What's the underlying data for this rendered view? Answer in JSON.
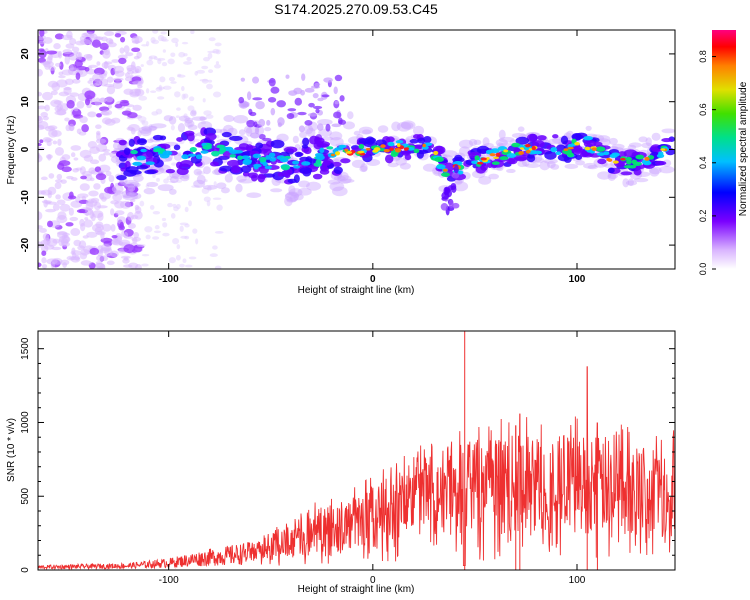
{
  "title": "S174.2025.270.09.53.C45",
  "chart_data": [
    {
      "type": "heatmap",
      "name": "spectrogram",
      "xlabel": "Height of straight line (km)",
      "ylabel": "Frequency (Hz)",
      "xlim": [
        -164,
        148
      ],
      "ylim": [
        -25,
        25
      ],
      "xticks": [
        -100,
        0,
        100
      ],
      "yticks": [
        -20,
        -10,
        0,
        10,
        20
      ],
      "colorbar": {
        "label": "Normalized spectral amplitude",
        "range": [
          0,
          0.9
        ],
        "ticks": [
          0.0,
          0.2,
          0.4,
          0.6,
          0.8
        ]
      },
      "ridge_center_hz": [
        [
          -120,
          -2
        ],
        [
          -100,
          -1
        ],
        [
          -80,
          0
        ],
        [
          -60,
          -2
        ],
        [
          -40,
          -3
        ],
        [
          -20,
          -1
        ],
        [
          0,
          0
        ],
        [
          15,
          0.5
        ],
        [
          25,
          1
        ],
        [
          30,
          0
        ],
        [
          36,
          -5
        ],
        [
          45,
          -3
        ],
        [
          55,
          -2
        ],
        [
          65,
          -1
        ],
        [
          75,
          0
        ],
        [
          85,
          1
        ],
        [
          95,
          0
        ],
        [
          105,
          1
        ],
        [
          115,
          -2
        ],
        [
          125,
          -3
        ],
        [
          135,
          -2
        ],
        [
          145,
          0
        ]
      ]
    },
    {
      "type": "line",
      "name": "snr",
      "xlabel": "Height of straight line (km)",
      "ylabel": "SNR (10 * v/v)",
      "xlim": [
        -164,
        148
      ],
      "ylim": [
        0,
        1620
      ],
      "xticks": [
        -100,
        0,
        100
      ],
      "yticks": [
        0,
        500,
        1000,
        1500
      ],
      "color": "#ee3030",
      "envelope": [
        {
          "x": -164,
          "y": 20
        },
        {
          "x": -120,
          "y": 30
        },
        {
          "x": -100,
          "y": 50
        },
        {
          "x": -80,
          "y": 90
        },
        {
          "x": -60,
          "y": 120
        },
        {
          "x": -40,
          "y": 200
        },
        {
          "x": -30,
          "y": 280
        },
        {
          "x": -20,
          "y": 300
        },
        {
          "x": -10,
          "y": 330
        },
        {
          "x": 0,
          "y": 380
        },
        {
          "x": 10,
          "y": 430
        },
        {
          "x": 20,
          "y": 530
        },
        {
          "x": 30,
          "y": 580
        },
        {
          "x": 40,
          "y": 560
        },
        {
          "x": 50,
          "y": 590
        },
        {
          "x": 60,
          "y": 600
        },
        {
          "x": 70,
          "y": 610
        },
        {
          "x": 80,
          "y": 620
        },
        {
          "x": 90,
          "y": 600
        },
        {
          "x": 100,
          "y": 620
        },
        {
          "x": 110,
          "y": 610
        },
        {
          "x": 120,
          "y": 600
        },
        {
          "x": 130,
          "y": 580
        },
        {
          "x": 140,
          "y": 560
        },
        {
          "x": 148,
          "y": 560
        }
      ],
      "spikes": [
        {
          "x": 45,
          "y": 1620
        },
        {
          "x": 105,
          "y": 1380
        },
        {
          "x": 72,
          "y": 1060
        },
        {
          "x": 110,
          "y": 1000
        },
        {
          "x": 70,
          "y": 980
        }
      ]
    }
  ]
}
